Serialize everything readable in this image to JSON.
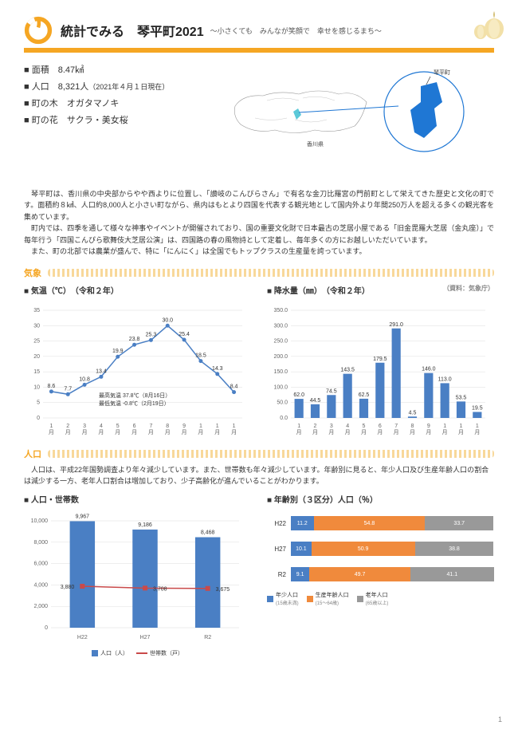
{
  "header": {
    "title": "統計でみる　琴平町2021",
    "subtitle": "〜小さくても　みんなが笑顔で　幸せを感じるまち〜",
    "logo_color": "#f5a623",
    "bar_color": "#f5a623",
    "garlic_color": "#f0d488"
  },
  "facts": {
    "area_label": "■ 面積",
    "area_value": "8.47㎢",
    "pop_label": "■ 人口",
    "pop_value": "8,321人",
    "pop_date": "（2021年４月１日現在）",
    "tree_label": "■ 町の木",
    "tree_value": "オガタマノキ",
    "flower_label": "■ 町の花",
    "flower_value": "サクラ・美女桜"
  },
  "map": {
    "pref_label": "香川県",
    "town_label": "琴平町",
    "shape_color": "#1f77d4",
    "highlight_color": "#5bc9d8"
  },
  "description": {
    "p1": "　琴平町は、香川県の中央部からやや西よりに位置し、「讃岐のこんぴらさん」で有名な金刀比羅宮の門前町として栄えてきた歴史と文化の町です。面積約８㎢、人口約8,000人と小さい町ながら、県内はもとより四国を代表する観光地として国内外より年間250万人を超える多くの観光客を集めています。",
    "p2": "　町内では、四季を通して様々な神事やイベントが開催されており、国の重要文化財で日本最古の芝居小屋である「旧金毘羅大芝居（金丸座）」で毎年行う「四国こんぴら歌舞伎大芝居公演」は、四国路の春の風物詩として定着し、毎年多くの方にお越しいただいています。",
    "p3": "　また、町の北部では農業が盛んで、特に「にんにく」は全国でもトップクラスの生産量を誇っています。"
  },
  "weather": {
    "section": "気象",
    "temp_title": "■ 気温（℃）　（令和２年）",
    "precip_title": "■ 降水量（㎜）　（令和２年）",
    "source": "（資料：気象庁）",
    "months": [
      "1月",
      "2月",
      "3月",
      "4月",
      "5月",
      "6月",
      "7月",
      "8月",
      "9月",
      "10月",
      "11月",
      "12月"
    ],
    "temperature": {
      "values": [
        8.6,
        7.7,
        10.8,
        13.4,
        19.9,
        23.8,
        25.3,
        30.0,
        25.4,
        18.5,
        14.3,
        8.4
      ],
      "ylim": [
        0,
        35
      ],
      "ytick_step": 5,
      "line_color": "#4a7fc4",
      "marker_color": "#4a7fc4",
      "max_note": "最高気温  37.8℃（8月16日）",
      "min_note": "最低気温  -0.8℃（2月19日）"
    },
    "precipitation": {
      "values": [
        62.0,
        44.5,
        74.5,
        143.5,
        62.5,
        179.5,
        291.0,
        4.5,
        146.0,
        113.0,
        53.5,
        19.5
      ],
      "ylim": [
        0,
        350
      ],
      "ytick_step": 50,
      "bar_color": "#4a7fc4"
    }
  },
  "population": {
    "section": "人口",
    "caption": "　人口は、平成22年国勢調査より年々減少しています。また、世帯数も年々減少しています。年齢別に見ると、年少人口及び生産年齢人口の割合は減少する一方、老年人口割合は増加しており、少子高齢化が進んでいることがわかります。",
    "pop_chart_title": "■ 人口・世帯数",
    "age_chart_title": "■ 年齢別（３区分）人口（％）",
    "pop_households": {
      "years": [
        "H22",
        "H27",
        "R2"
      ],
      "population": [
        9967,
        9186,
        8468
      ],
      "households": [
        3880,
        3708,
        3675
      ],
      "ylim": [
        0,
        10000
      ],
      "ytick_step": 2000,
      "bar_color": "#4a7fc4",
      "line_color": "#c94a4a",
      "legend_pop": "人口（人）",
      "legend_hh": "世帯数（戸）"
    },
    "age_dist": {
      "years": [
        "H22",
        "H27",
        "R2"
      ],
      "young": [
        11.2,
        10.1,
        9.1
      ],
      "working": [
        54.8,
        50.9,
        49.7
      ],
      "elderly": [
        33.7,
        38.8,
        41.1
      ],
      "colors": {
        "young": "#4a7fc4",
        "working": "#f08a3c",
        "elderly": "#999999"
      },
      "legend": {
        "young": "年少人口",
        "young_sub": "(15歳未満)",
        "working": "生産年齢人口",
        "working_sub": "(15〜64歳)",
        "elderly": "老年人口",
        "elderly_sub": "(65歳以上)"
      }
    }
  },
  "page_number": "1"
}
